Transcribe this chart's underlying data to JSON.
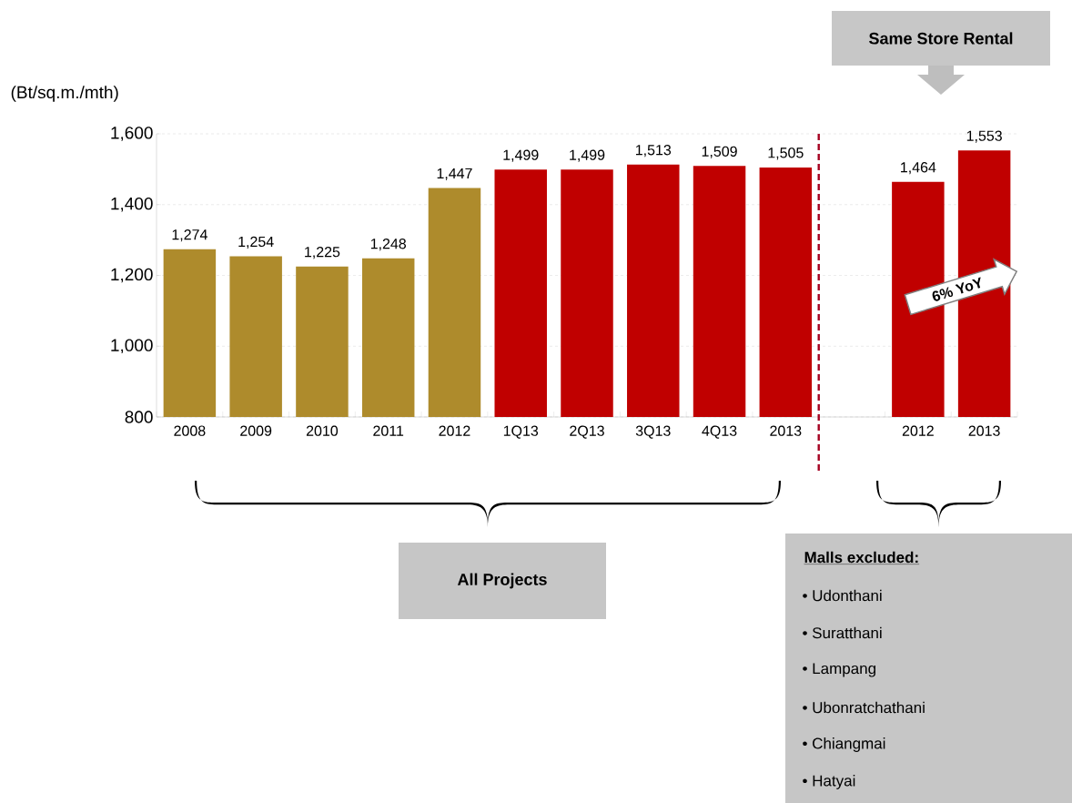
{
  "chart_data": {
    "type": "bar",
    "ylabel": "(Bt/sq.m./mth)",
    "categories": [
      "2008",
      "2009",
      "2010",
      "2011",
      "2012",
      "1Q13",
      "2Q13",
      "3Q13",
      "4Q13",
      "2013",
      null,
      "2012",
      "2013"
    ],
    "values": [
      1274,
      1254,
      1225,
      1248,
      1447,
      1499,
      1499,
      1513,
      1509,
      1505,
      null,
      1464,
      1553
    ],
    "colors": [
      "#ae8b2c",
      "#ae8b2c",
      "#ae8b2c",
      "#ae8b2c",
      "#ae8b2c",
      "#c00000",
      "#c00000",
      "#c00000",
      "#c00000",
      "#c00000",
      "#c00000",
      "#c00000",
      "#c00000"
    ],
    "value_labels": [
      "1,274",
      "1,254",
      "1,225",
      "1,248",
      "1,447",
      "1,499",
      "1,499",
      "1,513",
      "1,509",
      "1,505",
      null,
      "1,464",
      "1,553"
    ],
    "ylim": [
      800,
      1600
    ],
    "yticks": [
      {
        "value": 800,
        "label": "800"
      },
      {
        "value": 1000,
        "label": "1,000"
      },
      {
        "value": 1200,
        "label": "1,200"
      },
      {
        "value": 1400,
        "label": "1,400"
      },
      {
        "value": 1600,
        "label": "1,600"
      }
    ],
    "grid": "y",
    "annotations": [
      "Same Store Rental",
      "6% YoY",
      "All Projects",
      "Malls excluded:",
      "• Udonthani",
      "• Suratthani",
      "• Lampang",
      "• Ubonratchathani",
      "• Chiangmai",
      "• Hatyai"
    ]
  }
}
